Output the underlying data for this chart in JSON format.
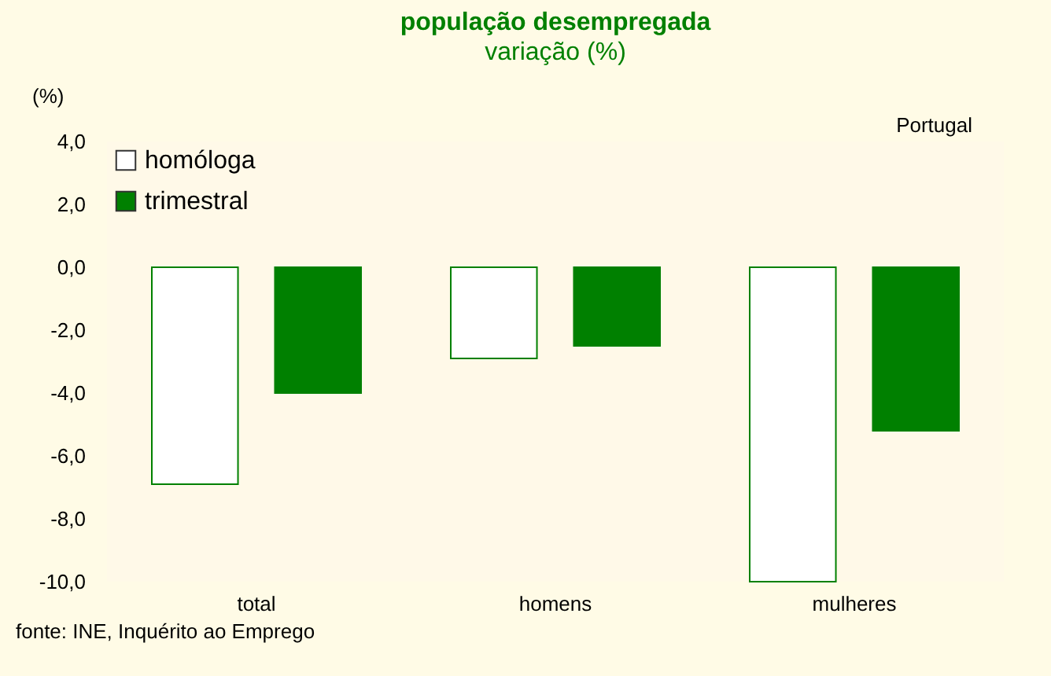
{
  "chart_data": {
    "type": "bar",
    "title": "população desempregada",
    "subtitle": "variação (%)",
    "ylabel": "(%)",
    "categories": [
      "total",
      "homens",
      "mulheres"
    ],
    "series": [
      {
        "name": "homóloga",
        "color": "#ffffff",
        "values": [
          -6.9,
          -2.9,
          -10.0
        ]
      },
      {
        "name": "trimestral",
        "color": "#008000",
        "values": [
          -4.0,
          -2.5,
          -5.2
        ]
      }
    ],
    "ylim": [
      -10,
      4
    ],
    "yticks": [
      {
        "value": -10,
        "label": "-10,0"
      },
      {
        "value": -8,
        "label": "-8,0"
      },
      {
        "value": -6,
        "label": "-6,0"
      },
      {
        "value": -4,
        "label": "-4,0"
      },
      {
        "value": -2,
        "label": "-2,0"
      },
      {
        "value": 0,
        "label": "0,0"
      },
      {
        "value": 2,
        "label": "2,0"
      },
      {
        "value": 4,
        "label": "4,0"
      }
    ],
    "legend": "top left",
    "annotations": [
      "Portugal",
      "fonte: INE, Inquérito ao Emprego"
    ]
  }
}
